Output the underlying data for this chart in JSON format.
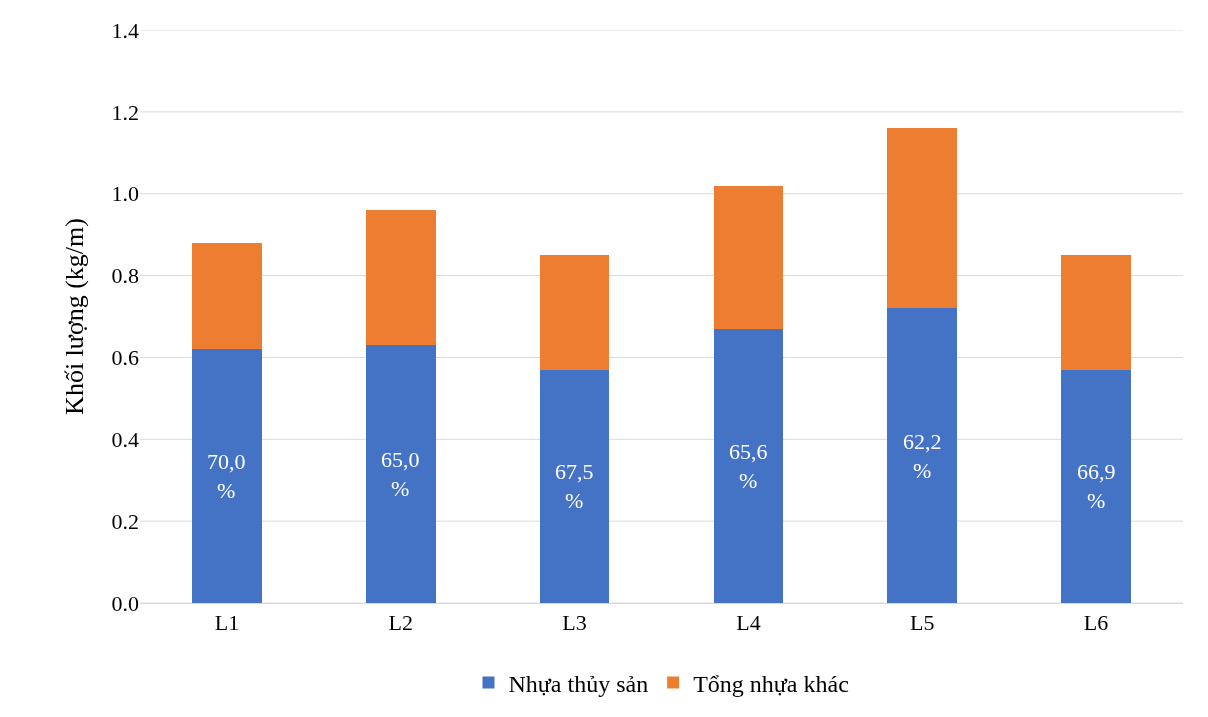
{
  "chart_data": {
    "type": "bar",
    "stacked": true,
    "ylabel": "Khối lượng (kg/m)",
    "categories": [
      "L1",
      "L2",
      "L3",
      "L4",
      "L5",
      "L6"
    ],
    "series": [
      {
        "name": "Nhựa thủy sản",
        "color": "#4472c4",
        "values": [
          0.62,
          0.63,
          0.57,
          0.67,
          0.72,
          0.57
        ]
      },
      {
        "name": "Tổng nhựa khác",
        "color": "#ed7d31",
        "values": [
          0.26,
          0.33,
          0.28,
          0.35,
          0.44,
          0.28
        ]
      }
    ],
    "ylim": [
      0,
      1.4
    ],
    "yticks": [
      {
        "value": 0,
        "label": "0.0"
      },
      {
        "value": 0.2,
        "label": "0.2"
      },
      {
        "value": 0.4,
        "label": "0.4"
      },
      {
        "value": 0.6,
        "label": "0.6"
      },
      {
        "value": 0.8,
        "label": "0.8"
      },
      {
        "value": 1,
        "label": "1.0"
      },
      {
        "value": 1.2,
        "label": "1.2"
      },
      {
        "value": 1.4,
        "label": "1.4"
      }
    ],
    "annotations": [
      "70,0\n%",
      "65,0\n%",
      "67,5\n%",
      "65,6\n%",
      "62,2\n%",
      "66,9\n%"
    ],
    "grid": "y",
    "legend": "bottom"
  }
}
